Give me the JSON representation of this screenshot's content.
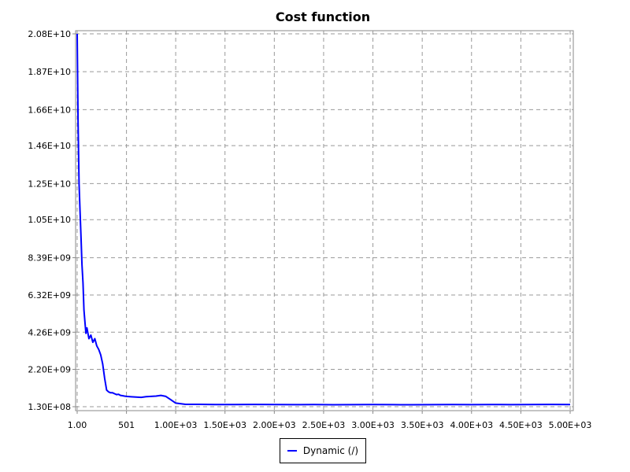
{
  "chart_data": {
    "type": "line",
    "title": "Cost function",
    "xlabel": "",
    "ylabel": "",
    "xlim": [
      1,
      5000
    ],
    "ylim": [
      130000000,
      20800000000
    ],
    "x_ticks": [
      {
        "value": 1,
        "label": "1.00"
      },
      {
        "value": 501,
        "label": "501"
      },
      {
        "value": 1000,
        "label": "1.00E+03"
      },
      {
        "value": 1500,
        "label": "1.50E+03"
      },
      {
        "value": 2000,
        "label": "2.00E+03"
      },
      {
        "value": 2500,
        "label": "2.50E+03"
      },
      {
        "value": 3000,
        "label": "3.00E+03"
      },
      {
        "value": 3500,
        "label": "3.50E+03"
      },
      {
        "value": 4000,
        "label": "4.00E+03"
      },
      {
        "value": 4500,
        "label": "4.50E+03"
      },
      {
        "value": 5000,
        "label": "5.00E+03"
      }
    ],
    "y_ticks": [
      {
        "value": 130000000,
        "label": "1.30E+08"
      },
      {
        "value": 2200000000,
        "label": "2.20E+09"
      },
      {
        "value": 4260000000,
        "label": "4.26E+09"
      },
      {
        "value": 6320000000,
        "label": "6.32E+09"
      },
      {
        "value": 8390000000,
        "label": "8.39E+09"
      },
      {
        "value": 10500000000,
        "label": "1.05E+10"
      },
      {
        "value": 12500000000,
        "label": "1.25E+10"
      },
      {
        "value": 14600000000,
        "label": "1.46E+10"
      },
      {
        "value": 16600000000,
        "label": "1.66E+10"
      },
      {
        "value": 18700000000,
        "label": "1.87E+10"
      },
      {
        "value": 20800000000,
        "label": "2.08E+10"
      }
    ],
    "grid": true,
    "legend_position": "bottom-center",
    "series": [
      {
        "name": "Dynamic (/)",
        "color": "#0000ff",
        "x": [
          1,
          10,
          20,
          30,
          40,
          50,
          60,
          70,
          80,
          90,
          100,
          120,
          140,
          160,
          180,
          200,
          220,
          240,
          260,
          280,
          300,
          320,
          340,
          360,
          380,
          400,
          420,
          440,
          460,
          480,
          500,
          550,
          600,
          650,
          700,
          750,
          800,
          850,
          900,
          950,
          1000,
          1100,
          1200,
          1400,
          1600,
          1800,
          2000,
          2200,
          2400,
          2600,
          2800,
          3000,
          3200,
          3400,
          3600,
          3800,
          4000,
          4200,
          4400,
          4600,
          4800,
          5000
        ],
        "values": [
          20800000000,
          16000000000,
          12500000000,
          11000000000,
          9500000000,
          8000000000,
          7000000000,
          5500000000,
          4800000000,
          4200000000,
          4500000000,
          3900000000,
          4100000000,
          3700000000,
          3900000000,
          3500000000,
          3300000000,
          3000000000,
          2500000000,
          1700000000,
          1050000000,
          950000000,
          900000000,
          900000000,
          850000000,
          800000000,
          820000000,
          760000000,
          740000000,
          720000000,
          700000000,
          680000000,
          660000000,
          650000000,
          690000000,
          700000000,
          720000000,
          760000000,
          700000000,
          520000000,
          330000000,
          260000000,
          260000000,
          250000000,
          250000000,
          255000000,
          250000000,
          245000000,
          250000000,
          240000000,
          245000000,
          250000000,
          245000000,
          240000000,
          245000000,
          250000000,
          245000000,
          250000000,
          245000000,
          250000000,
          255000000,
          250000000
        ]
      }
    ]
  }
}
